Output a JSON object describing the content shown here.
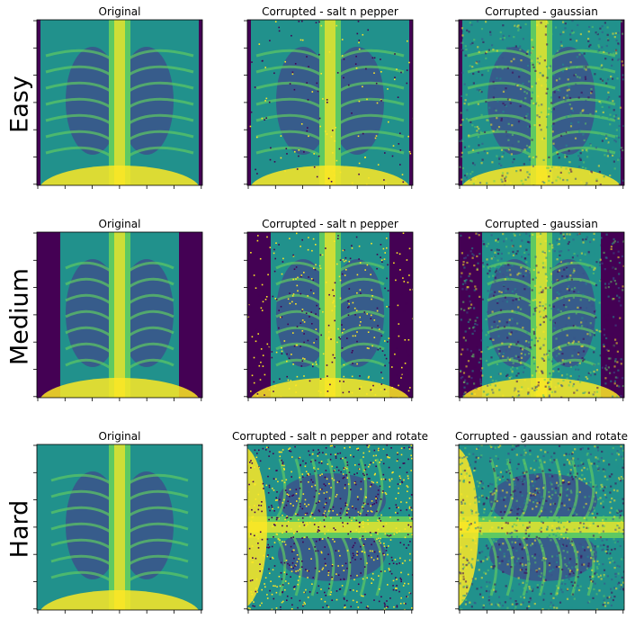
{
  "rows": [
    {
      "label": "Easy",
      "panels": [
        {
          "title": "Original",
          "image": "chest x-ray, clean"
        },
        {
          "title": "Corrupted - salt n pepper",
          "image": "chest x-ray, salt and pepper noise"
        },
        {
          "title": "Corrupted - gaussian",
          "image": "chest x-ray, gaussian noise"
        }
      ]
    },
    {
      "label": "Medium",
      "panels": [
        {
          "title": "Original",
          "image": "pediatric chest x-ray, clean"
        },
        {
          "title": "Corrupted - salt n pepper",
          "image": "pediatric chest x-ray, salt and pepper noise"
        },
        {
          "title": "Corrupted - gaussian",
          "image": "pediatric chest x-ray, gaussian noise"
        }
      ]
    },
    {
      "label": "Hard",
      "panels": [
        {
          "title": "Original",
          "image": "pediatric chest x-ray, clean"
        },
        {
          "title": "Corrupted - salt n pepper and rotate",
          "image": "rotated chest x-ray, salt and pepper noise"
        },
        {
          "title": "Corrupted - gaussian and rotate",
          "image": "rotated chest x-ray, gaussian noise"
        }
      ]
    }
  ],
  "colormap": [
    "#440154",
    "#3b528b",
    "#21918c",
    "#5ec962",
    "#fde725"
  ]
}
